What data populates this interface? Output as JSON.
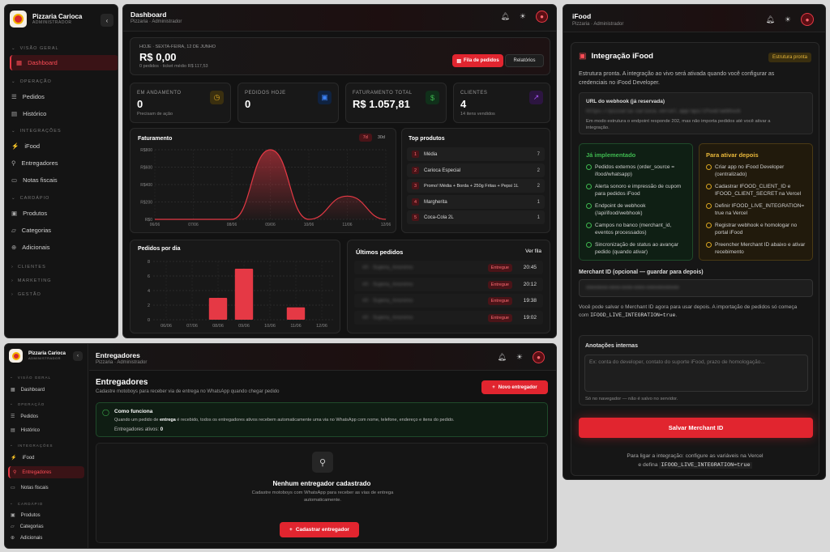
{
  "brand": {
    "name": "Pizzaria Carioca",
    "role": "ADMINISTRADOR"
  },
  "nav": {
    "visao_geral": "VISÃO GERAL",
    "dashboard": "Dashboard",
    "operacao": "OPERAÇÃO",
    "pedidos": "Pedidos",
    "historico": "Histórico",
    "integracoes": "INTEGRAÇÕES",
    "ifood": "iFood",
    "entregadores": "Entregadores",
    "notas": "Notas fiscais",
    "cardapio": "CARDÁPIO",
    "produtos": "Produtos",
    "categorias": "Categorias",
    "adicionais": "Adicionais",
    "clientes": "CLIENTES",
    "marketing": "MARKETING",
    "gestao": "GESTÃO"
  },
  "dashboard": {
    "title": "Dashboard",
    "subtitle": "Pizzaria · Administrador",
    "date": "HOJE · SEXTA-FEIRA, 12 DE JUNHO",
    "total": "R$ 0,00",
    "total_sub": "0 pedidos · ticket médio R$ 117,53",
    "btn_fila": "Fila de pedidos",
    "btn_rel": "Relatórios",
    "kpis": [
      {
        "label": "EM ANDAMENTO",
        "value": "0",
        "sub": "Precisam de ação",
        "color": "#d9a521",
        "icon": "clock-icon"
      },
      {
        "label": "PEDIDOS HOJE",
        "value": "0",
        "sub": "",
        "color": "#3b82f6",
        "icon": "bag-icon"
      },
      {
        "label": "FATURAMENTO TOTAL",
        "value": "R$ 1.057,81",
        "sub": "",
        "color": "#3fb950",
        "icon": "dollar-icon"
      },
      {
        "label": "CLIENTES",
        "value": "4",
        "sub": "14 itens vendidos",
        "color": "#a855f7",
        "icon": "trend-icon"
      }
    ],
    "fat_title": "Faturamento",
    "seg_7d": "7d",
    "seg_30d": "30d",
    "top_title": "Top produtos",
    "top": [
      {
        "rank": "1",
        "name": "Média",
        "qty": "7"
      },
      {
        "rank": "2",
        "name": "Carioca Especial",
        "qty": "2"
      },
      {
        "rank": "3",
        "name": "Promo! Média + Borda + 250g Fritas + Pepsi 1L",
        "qty": "2"
      },
      {
        "rank": "4",
        "name": "Margherita",
        "qty": "1"
      },
      {
        "rank": "5",
        "name": "Coca-Cola 2L",
        "qty": "1"
      }
    ],
    "pd_title": "Pedidos por dia",
    "ult_title": "Últimos pedidos",
    "ver_fila": "Ver fila",
    "orders": [
      {
        "name": "#0 · Sujeira_Anonimo",
        "status": "Entregue",
        "time": "20:45"
      },
      {
        "name": "#0 · Sujeira_Anonimo",
        "status": "Entregue",
        "time": "20:12"
      },
      {
        "name": "#0 · Sujeira_Anonimo",
        "status": "Entregue",
        "time": "19:38"
      },
      {
        "name": "#0 · Sujeira_Anonimo",
        "status": "Entregue",
        "time": "19:02"
      }
    ]
  },
  "chart_data": [
    {
      "type": "area",
      "title": "Faturamento",
      "x": [
        "06/06",
        "07/06",
        "08/06",
        "09/06",
        "10/06",
        "11/06",
        "12/06"
      ],
      "series": [
        {
          "values": [
            0,
            0,
            0,
            900,
            0,
            300,
            0
          ]
        }
      ],
      "yticks": [
        "R$800",
        "R$600",
        "R$400",
        "R$200",
        "R$0"
      ],
      "ylim": [
        0,
        900
      ],
      "grid": true,
      "color": "#e53945"
    },
    {
      "type": "bar",
      "title": "Pedidos por dia",
      "categories": [
        "06/06",
        "07/06",
        "08/06",
        "09/06",
        "10/06",
        "11/06",
        "12/06"
      ],
      "values": [
        0,
        0,
        3,
        7,
        0,
        1.7,
        0
      ],
      "yticks": [
        "8",
        "6",
        "4",
        "2",
        "0"
      ],
      "ylim": [
        0,
        8
      ],
      "grid": true,
      "color": "#e53945"
    }
  ],
  "entregadores": {
    "title": "Entregadores",
    "subtitle": "Pizzaria · Administrador",
    "h1": "Entregadores",
    "desc": "Cadastre motoboys para receber via de entrega no WhatsApp quando chegar pedido",
    "btn_novo": "Novo entregador",
    "how_title": "Como funciona",
    "how_pre": "Quando um pedido de ",
    "how_bold": "entrega",
    "how_post": " é recebido, todos os entregadores ativos recebem automaticamente uma via no WhatsApp com nome, telefone, endereço e itens do pedido.",
    "ativos_label": "Entregadores ativos: ",
    "ativos_val": "0",
    "empty_title": "Nenhum entregador cadastrado",
    "empty_desc": "Cadastre motoboys com WhatsApp para receber as vias de entrega automaticamente.",
    "btn_cad": "Cadastrar entregador"
  },
  "ifood": {
    "title": "iFood",
    "subtitle": "Pizzaria · Administrador",
    "card_title": "Integração iFood",
    "badge": "Estrutura pronta",
    "intro": "Estrutura pronta. A integração ao vivo será ativada quando você configurar as credenciais no iFood Developer.",
    "wh_label": "URL do webhook (já reservada)",
    "wh_url": "https://pizzaria-carioca.vercel.app/api/ifood/webhook",
    "wh_note": "Em modo estrutura o endpoint responde 202, mas não importa pedidos até você ativar a integração.",
    "impl_title": "Já implementado",
    "impl": [
      "Pedidos externos (order_source = ifood/whatsapp)",
      "Alerta sonoro e impressão de cupom para pedidos iFood",
      "Endpoint de webhook (/api/ifood/webhook)",
      "Campos no banco (merchant_id, eventos processados)",
      "Sincronização de status ao avançar pedido (quando ativar)"
    ],
    "todo_title": "Para ativar depois",
    "todo": [
      "Criar app no iFood Developer (centralizado)",
      "Cadastrar IFOOD_CLIENT_ID e IFOOD_CLIENT_SECRET na Vercel",
      "Definir IFOOD_LIVE_INTEGRATION= true na Vercel",
      "Registrar webhook e homologar no portal iFood",
      "Preencher Merchant ID abaixo e ativar recebimento"
    ],
    "merchant_label": "Merchant ID (opcional — guardar para depois)",
    "merchant_value": "00000000-0000-0000-0000-000000000000",
    "merchant_note_pre": "Você pode salvar o Merchant ID agora para usar depois. A importação de pedidos só começa com ",
    "merchant_note_code": "IFOOD_LIVE_INTEGRATION=true",
    "anot_title": "Anotações internas",
    "anot_placeholder": "Ex: conta do developer, contato do suporte iFood, prazo de homologação...",
    "anot_note": "Só no navegador — não é salvo no servidor.",
    "btn_save": "Salvar Merchant ID",
    "foot1": "Para ligar a integração: configure as variáveis na Vercel",
    "foot2_pre": "e defina ",
    "foot2_code": "IFOOD_LIVE_INTEGRATION=true"
  }
}
